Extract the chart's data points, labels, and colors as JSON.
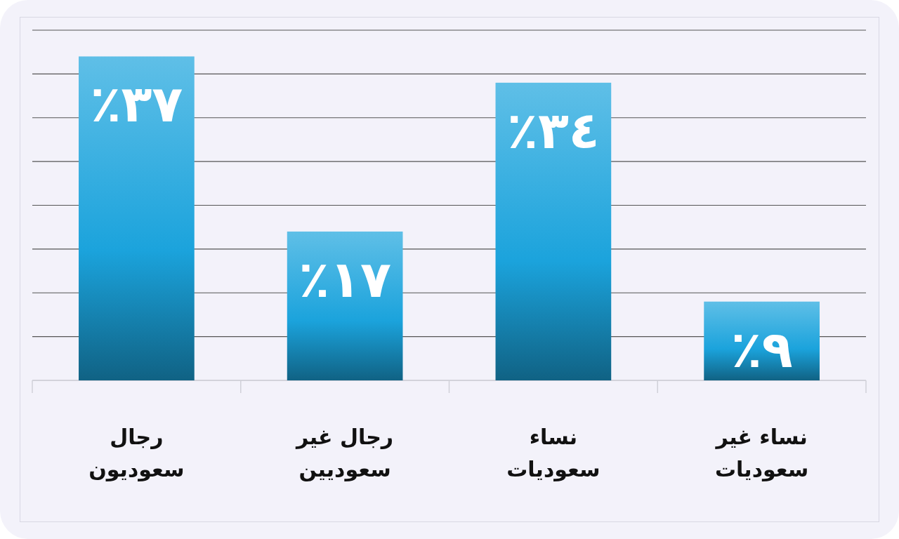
{
  "chart_data": {
    "type": "bar",
    "categories": [
      "رجال سعوديون",
      "رجال غير سعوديين",
      "نساء سعوديات",
      "نساء غير سعوديات"
    ],
    "values": [
      37,
      17,
      34,
      9
    ],
    "value_labels": [
      "٪٣٧",
      "٪١٧",
      "٪٣٤",
      "٪٩"
    ],
    "color": "#1ba3dc",
    "ylim": [
      0,
      40
    ],
    "yticks": [
      {
        "value": 0,
        "label": null
      },
      {
        "value": 5,
        "label": null
      },
      {
        "value": 10,
        "label": null
      },
      {
        "value": 15,
        "label": null
      },
      {
        "value": 20,
        "label": null
      },
      {
        "value": 25,
        "label": null
      },
      {
        "value": 30,
        "label": null
      },
      {
        "value": 35,
        "label": null
      },
      {
        "value": 40,
        "label": null
      }
    ],
    "grid": "y",
    "tick_labels": "x"
  }
}
